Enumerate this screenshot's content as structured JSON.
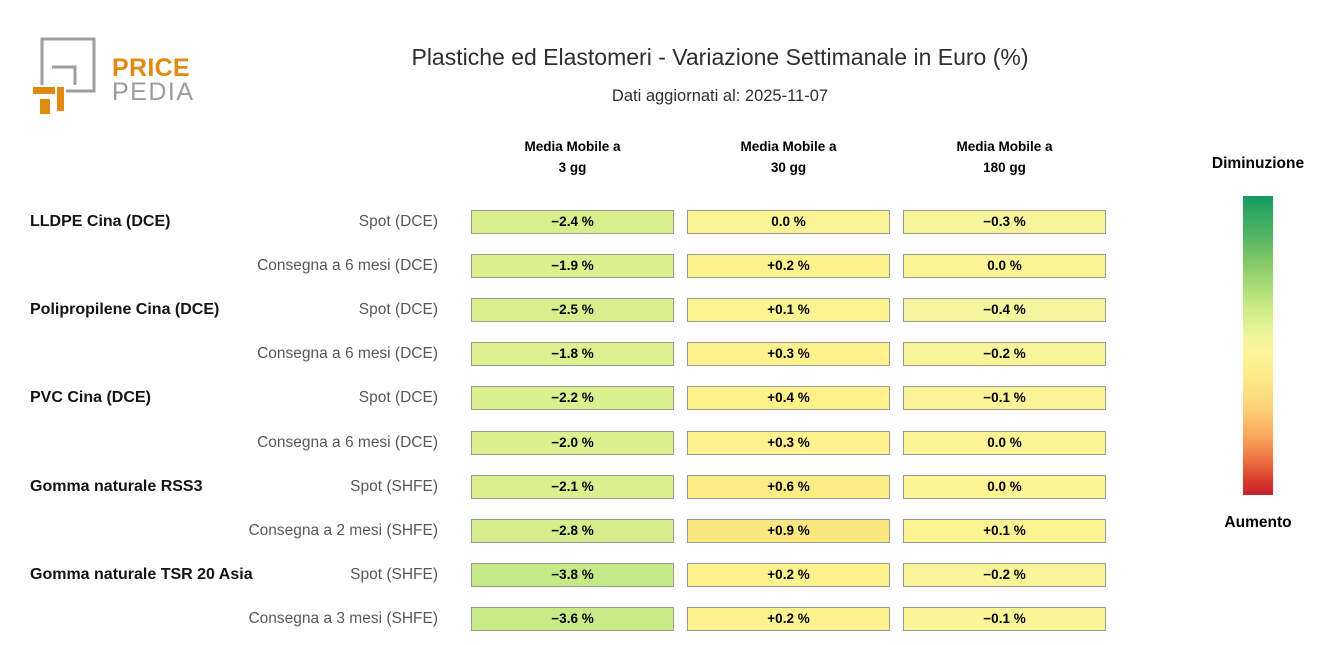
{
  "header": {
    "logo": {
      "price": "PRICE",
      "pedia": "PEDIA",
      "orange": "#E08A12",
      "gray": "#9C9C9C"
    }
  },
  "chart_data": {
    "type": "heatmap",
    "title": "Plastiche ed Elastomeri - Variazione Settimanale in Euro (%)",
    "subtitle": "Dati aggiornati al: 2025-11-07",
    "columns": [
      "Media Mobile a\n3 gg",
      "Media Mobile a\n30 gg",
      "Media Mobile a\n180 gg"
    ],
    "rows": [
      {
        "group": "LLDPE Cina (DCE)",
        "label": "Spot (DCE)",
        "cells": [
          {
            "text": "−2.4 %",
            "value": -2.4,
            "bg": "#d9ef8e"
          },
          {
            "text": "0.0 %",
            "value": 0.0,
            "bg": "#fbf595"
          },
          {
            "text": "−0.3 %",
            "value": -0.3,
            "bg": "#f6f59a"
          }
        ]
      },
      {
        "group": "",
        "label": "Consegna a 6 mesi (DCE)",
        "cells": [
          {
            "text": "−1.9 %",
            "value": -1.9,
            "bg": "#ddf090"
          },
          {
            "text": "+0.2 %",
            "value": 0.2,
            "bg": "#fdf38e"
          },
          {
            "text": "0.0 %",
            "value": 0.0,
            "bg": "#fbf595"
          }
        ]
      },
      {
        "group": "Polipropilene Cina (DCE)",
        "label": "Spot (DCE)",
        "cells": [
          {
            "text": "−2.5 %",
            "value": -2.5,
            "bg": "#d8ef8d"
          },
          {
            "text": "+0.1 %",
            "value": 0.1,
            "bg": "#fcf491"
          },
          {
            "text": "−0.4 %",
            "value": -0.4,
            "bg": "#f4f59c"
          }
        ]
      },
      {
        "group": "",
        "label": "Consegna a 6 mesi (DCE)",
        "cells": [
          {
            "text": "−1.8 %",
            "value": -1.8,
            "bg": "#def191"
          },
          {
            "text": "+0.3 %",
            "value": 0.3,
            "bg": "#fdf28c"
          },
          {
            "text": "−0.2 %",
            "value": -0.2,
            "bg": "#f8f598"
          }
        ]
      },
      {
        "group": "PVC Cina (DCE)",
        "label": "Spot (DCE)",
        "cells": [
          {
            "text": "−2.2 %",
            "value": -2.2,
            "bg": "#dbf08e"
          },
          {
            "text": "+0.4 %",
            "value": 0.4,
            "bg": "#fdf18a"
          },
          {
            "text": "−0.1 %",
            "value": -0.1,
            "bg": "#faf596"
          }
        ]
      },
      {
        "group": "",
        "label": "Consegna a 6 mesi (DCE)",
        "cells": [
          {
            "text": "−2.0 %",
            "value": -2.0,
            "bg": "#ddf090"
          },
          {
            "text": "+0.3 %",
            "value": 0.3,
            "bg": "#fdf28c"
          },
          {
            "text": "0.0 %",
            "value": 0.0,
            "bg": "#fbf595"
          }
        ]
      },
      {
        "group": "Gomma naturale RSS3",
        "label": "Spot (SHFE)",
        "cells": [
          {
            "text": "−2.1 %",
            "value": -2.1,
            "bg": "#dcf08f"
          },
          {
            "text": "+0.6 %",
            "value": 0.6,
            "bg": "#fcee85"
          },
          {
            "text": "0.0 %",
            "value": 0.0,
            "bg": "#fbf595"
          }
        ]
      },
      {
        "group": "",
        "label": "Consegna a 2 mesi (SHFE)",
        "cells": [
          {
            "text": "−2.8 %",
            "value": -2.8,
            "bg": "#d4ee8b"
          },
          {
            "text": "+0.9 %",
            "value": 0.9,
            "bg": "#fae87e"
          },
          {
            "text": "+0.1 %",
            "value": 0.1,
            "bg": "#fcf491"
          }
        ]
      },
      {
        "group": "Gomma naturale TSR 20 Asia",
        "label": "Spot (SHFE)",
        "cells": [
          {
            "text": "−3.8 %",
            "value": -3.8,
            "bg": "#c5ea85"
          },
          {
            "text": "+0.2 %",
            "value": 0.2,
            "bg": "#fdf38e"
          },
          {
            "text": "−0.2 %",
            "value": -0.2,
            "bg": "#f8f598"
          }
        ]
      },
      {
        "group": "",
        "label": "Consegna a 3 mesi (SHFE)",
        "cells": [
          {
            "text": "−3.6 %",
            "value": -3.6,
            "bg": "#c8eb87"
          },
          {
            "text": "+0.2 %",
            "value": 0.2,
            "bg": "#fdf38e"
          },
          {
            "text": "−0.1 %",
            "value": -0.1,
            "bg": "#faf596"
          }
        ]
      }
    ],
    "legend": {
      "top_label": "Diminuzione",
      "bottom_label": "Aumento",
      "gradient": [
        {
          "pos": 0,
          "color": "#149B5F"
        },
        {
          "pos": 12,
          "color": "#4DB363"
        },
        {
          "pos": 24,
          "color": "#8CCC68"
        },
        {
          "pos": 36,
          "color": "#C5E983"
        },
        {
          "pos": 46,
          "color": "#EDF59C"
        },
        {
          "pos": 52,
          "color": "#FCF49A"
        },
        {
          "pos": 60,
          "color": "#FDEC86"
        },
        {
          "pos": 70,
          "color": "#FDD47A"
        },
        {
          "pos": 80,
          "color": "#F9A95C"
        },
        {
          "pos": 88,
          "color": "#EE7444"
        },
        {
          "pos": 95,
          "color": "#D73C2D"
        },
        {
          "pos": 100,
          "color": "#C5202E"
        }
      ]
    }
  }
}
